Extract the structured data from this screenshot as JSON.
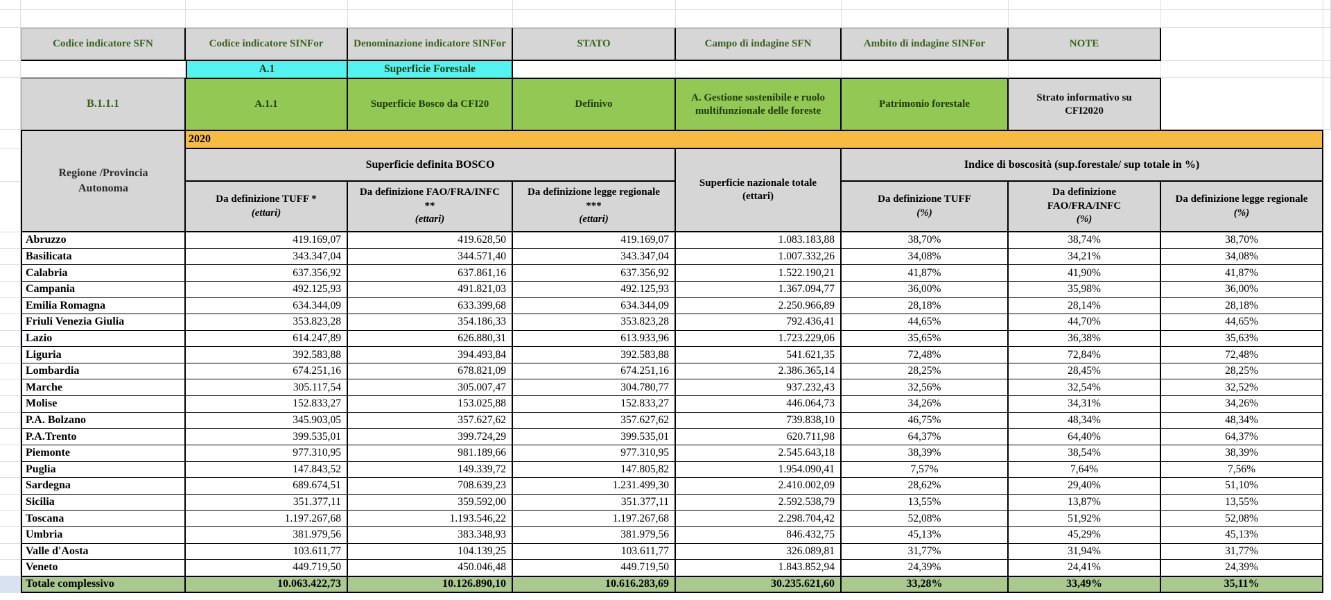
{
  "colors": {
    "header-gray": "#d6d6d6",
    "cyan": "#55f2f2",
    "green": "#92c853",
    "orange": "#f6bc42",
    "total-green": "#a9c98f",
    "select-blue": "#d9e2f1",
    "header-text-green": "#38611c",
    "cell-text-green": "#203c0b",
    "grid-line": "#dcdce4"
  },
  "header": {
    "codice_sfn": "Codice indicatore SFN",
    "codice_sinfor": "Codice indicatore SINFor",
    "denominazione_sinfor": "Denominazione indicatore SINFor",
    "stato": "STATO",
    "campo_sfn": "Campo di indagine SFN",
    "ambito_sinfor": "Ambito di indagine SINFor",
    "note": "NOTE"
  },
  "indicator_group": {
    "code": "A.1",
    "name": "Superficie Forestale"
  },
  "indicator": {
    "codice_sfn": "B.1.1.1",
    "codice_sinfor": "A.1.1",
    "denominazione_sinfor": "Superficie Bosco da CFI20",
    "stato": "Definivo",
    "campo_sfn": "A. Gestione sostenibile e ruolo multifunzionale delle foreste",
    "ambito_sinfor": "Patrimonio forestale",
    "note": "Strato informativo su CFI2020"
  },
  "year": "2020",
  "table": {
    "row_header": "Regione /Provincia Autonoma",
    "group_bosco": "Superficie definita BOSCO",
    "group_indice": "Indice di boscosità (sup.forestale/ sup totale in %)",
    "nazionale": {
      "label": "Superficie nazionale totale",
      "unit": "(ettari)"
    },
    "subheaders": [
      {
        "label": "Da definizione TUFF *",
        "unit": "(ettari)"
      },
      {
        "label": "Da definizione FAO/FRA/INFC **",
        "unit": "(ettari)"
      },
      {
        "label": "Da definizione legge regionale  ***",
        "unit": "(ettari)"
      },
      {
        "label": "Da definizione TUFF",
        "unit": "(%)"
      },
      {
        "label": "Da definizione FAO/FRA/INFC",
        "unit": "(%)"
      },
      {
        "label": "Da definizione legge regionale",
        "unit": "(%)"
      }
    ],
    "rows": [
      {
        "region": "Abruzzo",
        "values": [
          "419.169,07",
          "419.628,50",
          "419.169,07",
          "1.083.183,88",
          "38,70%",
          "38,74%",
          "38,70%"
        ]
      },
      {
        "region": "Basilicata",
        "values": [
          "343.347,04",
          "344.571,40",
          "343.347,04",
          "1.007.332,26",
          "34,08%",
          "34,21%",
          "34,08%"
        ]
      },
      {
        "region": "Calabria",
        "values": [
          "637.356,92",
          "637.861,16",
          "637.356,92",
          "1.522.190,21",
          "41,87%",
          "41,90%",
          "41,87%"
        ]
      },
      {
        "region": "Campania",
        "values": [
          "492.125,93",
          "491.821,03",
          "492.125,93",
          "1.367.094,77",
          "36,00%",
          "35,98%",
          "36,00%"
        ]
      },
      {
        "region": "Emilia Romagna",
        "values": [
          "634.344,09",
          "633.399,68",
          "634.344,09",
          "2.250.966,89",
          "28,18%",
          "28,14%",
          "28,18%"
        ]
      },
      {
        "region": "Friuli Venezia Giulia",
        "values": [
          "353.823,28",
          "354.186,33",
          "353.823,28",
          "792.436,41",
          "44,65%",
          "44,70%",
          "44,65%"
        ]
      },
      {
        "region": "Lazio",
        "values": [
          "614.247,89",
          "626.880,31",
          "613.933,96",
          "1.723.229,06",
          "35,65%",
          "36,38%",
          "35,63%"
        ]
      },
      {
        "region": "Liguria",
        "values": [
          "392.583,88",
          "394.493,84",
          "392.583,88",
          "541.621,35",
          "72,48%",
          "72,84%",
          "72,48%"
        ]
      },
      {
        "region": "Lombardia",
        "values": [
          "674.251,16",
          "678.821,09",
          "674.251,16",
          "2.386.365,14",
          "28,25%",
          "28,45%",
          "28,25%"
        ]
      },
      {
        "region": "Marche",
        "values": [
          "305.117,54",
          "305.007,47",
          "304.780,77",
          "937.232,43",
          "32,56%",
          "32,54%",
          "32,52%"
        ]
      },
      {
        "region": "Molise",
        "values": [
          "152.833,27",
          "153.025,88",
          "152.833,27",
          "446.064,73",
          "34,26%",
          "34,31%",
          "34,26%"
        ]
      },
      {
        "region": "P.A. Bolzano",
        "values": [
          "345.903,05",
          "357.627,62",
          "357.627,62",
          "739.838,10",
          "46,75%",
          "48,34%",
          "48,34%"
        ]
      },
      {
        "region": "P.A.Trento",
        "values": [
          "399.535,01",
          "399.724,29",
          "399.535,01",
          "620.711,98",
          "64,37%",
          "64,40%",
          "64,37%"
        ]
      },
      {
        "region": "Piemonte",
        "values": [
          "977.310,95",
          "981.189,66",
          "977.310,95",
          "2.545.643,18",
          "38,39%",
          "38,54%",
          "38,39%"
        ]
      },
      {
        "region": "Puglia",
        "values": [
          "147.843,52",
          "149.339,72",
          "147.805,82",
          "1.954.090,41",
          "7,57%",
          "7,64%",
          "7,56%"
        ]
      },
      {
        "region": "Sardegna",
        "values": [
          "689.674,51",
          "708.639,23",
          "1.231.499,30",
          "2.410.002,09",
          "28,62%",
          "29,40%",
          "51,10%"
        ]
      },
      {
        "region": "Sicilia",
        "values": [
          "351.377,11",
          "359.592,00",
          "351.377,11",
          "2.592.538,79",
          "13,55%",
          "13,87%",
          "13,55%"
        ]
      },
      {
        "region": "Toscana",
        "values": [
          "1.197.267,68",
          "1.193.546,22",
          "1.197.267,68",
          "2.298.704,42",
          "52,08%",
          "51,92%",
          "52,08%"
        ]
      },
      {
        "region": "Umbria",
        "values": [
          "381.979,56",
          "383.348,93",
          "381.979,56",
          "846.432,75",
          "45,13%",
          "45,29%",
          "45,13%"
        ]
      },
      {
        "region": "Valle d'Aosta",
        "values": [
          "103.611,77",
          "104.139,25",
          "103.611,77",
          "326.089,81",
          "31,77%",
          "31,94%",
          "31,77%"
        ]
      },
      {
        "region": "Veneto",
        "values": [
          "449.719,50",
          "450.046,48",
          "449.719,50",
          "1.843.852,94",
          "24,39%",
          "24,41%",
          "24,39%"
        ]
      }
    ],
    "total": {
      "region": "Totale complessivo",
      "values": [
        "10.063.422,73",
        "10.126.890,10",
        "10.616.283,69",
        "30.235.621,60",
        "33,28%",
        "33,49%",
        "35,11%"
      ]
    }
  }
}
